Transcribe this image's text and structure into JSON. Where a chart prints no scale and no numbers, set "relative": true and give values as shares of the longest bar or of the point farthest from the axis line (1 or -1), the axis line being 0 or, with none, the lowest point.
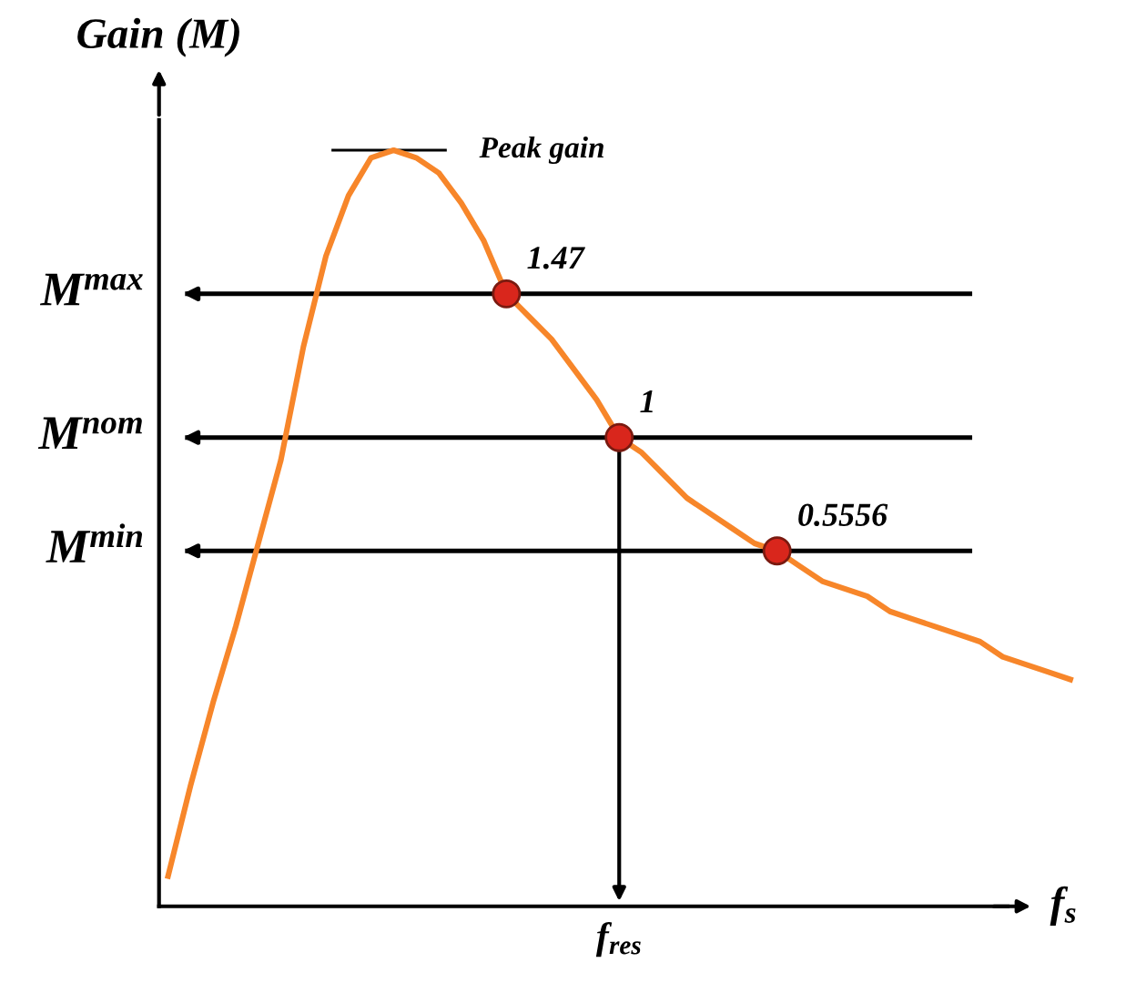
{
  "chart_data": {
    "type": "line",
    "relative": true,
    "ylabel": "Gain (M)",
    "xlabel": "f$_{s}$",
    "categories": [
      null,
      null,
      null,
      null,
      null,
      null,
      null,
      null,
      null,
      null,
      null,
      null,
      null,
      null,
      null,
      null,
      null,
      null,
      null,
      null,
      null,
      null,
      null,
      null,
      null,
      null,
      null,
      null,
      null,
      null,
      null,
      null,
      null,
      null,
      null,
      null,
      null,
      null,
      null,
      null,
      null
    ],
    "series": [
      {
        "color": "#f7862a",
        "values": [
          0.04,
          0.16,
          0.27,
          0.37,
          0.48,
          0.59,
          0.74,
          0.86,
          0.94,
          0.99,
          1.0,
          0.99,
          0.97,
          0.93,
          0.88,
          0.81,
          0.78,
          0.75,
          0.71,
          0.67,
          0.62,
          0.6,
          0.57,
          0.54,
          0.52,
          0.5,
          0.48,
          0.47,
          0.45,
          0.43,
          0.42,
          0.41,
          0.39,
          0.38,
          0.37,
          0.36,
          0.35,
          0.33,
          0.32,
          0.31,
          0.3
        ]
      }
    ],
    "ref_lines": [
      {
        "axis": "y",
        "value": 0.81,
        "label": "M$^{max}$",
        "color": "#000000"
      },
      {
        "axis": "y",
        "value": 0.62,
        "label": "M$^{nom}$",
        "color": "#000000"
      },
      {
        "axis": "y",
        "value": 0.47,
        "label": "M$^{min}$",
        "color": "#000000"
      }
    ],
    "annotations": [
      "Peak gain",
      "1.47",
      "1",
      "0.5556",
      "f$_{res}$"
    ]
  }
}
